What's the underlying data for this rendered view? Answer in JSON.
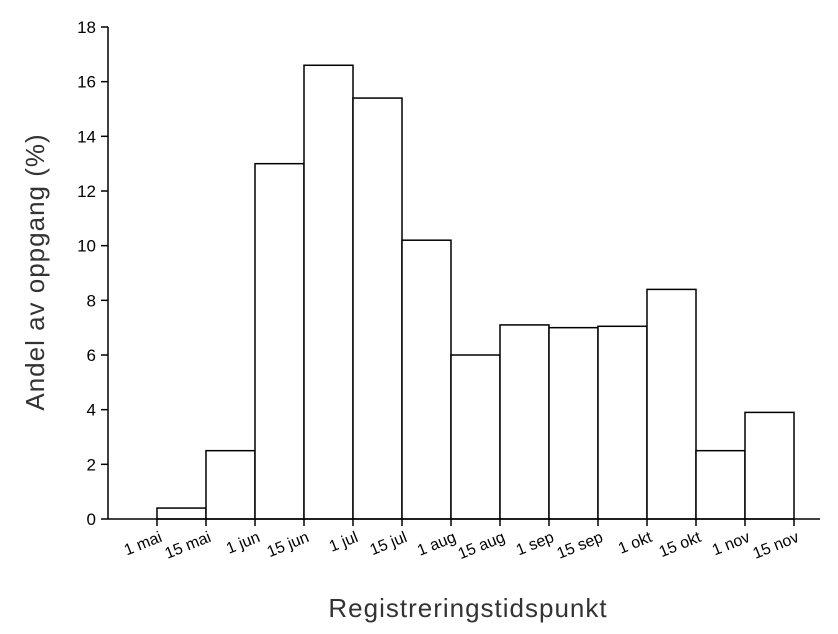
{
  "chart_data": {
    "type": "bar",
    "title": "",
    "xlabel": "Registreringstidspunkt",
    "ylabel": "Andel av oppgang (%)",
    "ylim": [
      0,
      18
    ],
    "yticks": [
      "0",
      "2",
      "4",
      "6",
      "8",
      "10",
      "12",
      "14",
      "16",
      "18"
    ],
    "xticks": [
      "1 mai",
      "15 mai",
      "1 jun",
      "15 jun",
      "1 jul",
      "15 jul",
      "1 aug",
      "15 aug",
      "1 sep",
      "15 sep",
      "1 okt",
      "15 okt",
      "1 nov",
      "15 nov"
    ],
    "bins": [
      {
        "from": "1 mai",
        "to": "15 mai",
        "value": 0.4
      },
      {
        "from": "15 mai",
        "to": "1 jun",
        "value": 2.5
      },
      {
        "from": "1 jun",
        "to": "15 jun",
        "value": 13.0
      },
      {
        "from": "15 jun",
        "to": "1 jul",
        "value": 16.6
      },
      {
        "from": "1 jul",
        "to": "15 jul",
        "value": 15.4
      },
      {
        "from": "15 jul",
        "to": "1 aug",
        "value": 10.2
      },
      {
        "from": "1 aug",
        "to": "15 aug",
        "value": 6.0
      },
      {
        "from": "15 aug",
        "to": "1 sep",
        "value": 7.1
      },
      {
        "from": "1 sep",
        "to": "15 sep",
        "value": 7.0
      },
      {
        "from": "15 sep",
        "to": "1 okt",
        "value": 7.05
      },
      {
        "from": "1 okt",
        "to": "15 okt",
        "value": 8.4
      },
      {
        "from": "15 okt",
        "to": "1 nov",
        "value": 2.5
      },
      {
        "from": "1 nov",
        "to": "15 nov",
        "value": 3.9
      }
    ],
    "grid": false,
    "legend": "none"
  }
}
